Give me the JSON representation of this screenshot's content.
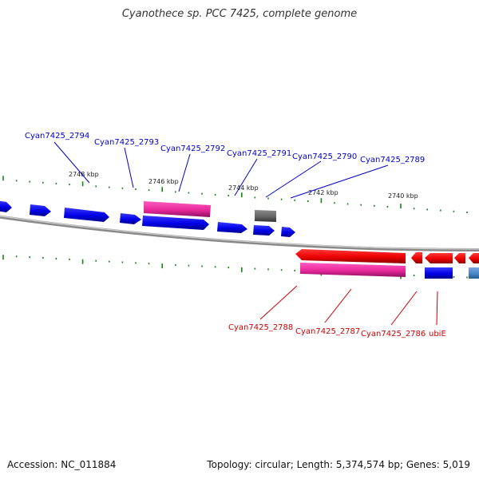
{
  "title": "Cyanothece sp. PCC 7425, complete genome",
  "footer": {
    "accession": "Accession: NC_011884",
    "topology": "Topology: circular; Length: 5,374,574 bp; Genes: 5,019"
  },
  "colors": {
    "forward_gene": "#0000ee",
    "reverse_gene": "#ee0000",
    "rna_gene": "#e8289a",
    "pseudo_gene": "#666666",
    "other_gene": "#4a86c8",
    "tick": "#118811",
    "backbone": "#999999",
    "label_forward": "#0000cc",
    "label_reverse": "#cc0000"
  },
  "kbp_labels": [
    "2748 kbp",
    "2746 kbp",
    "2744 kbp",
    "2742 kbp",
    "2740 kbp"
  ],
  "top_labels": [
    "Cyan7425_2794",
    "Cyan7425_2793",
    "Cyan7425_2792",
    "Cyan7425_2791",
    "Cyan7425_2790",
    "Cyan7425_2789"
  ],
  "bottom_labels": [
    "Cyan7425_2788",
    "Cyan7425_2787",
    "Cyan7425_2786",
    "ubiE"
  ]
}
